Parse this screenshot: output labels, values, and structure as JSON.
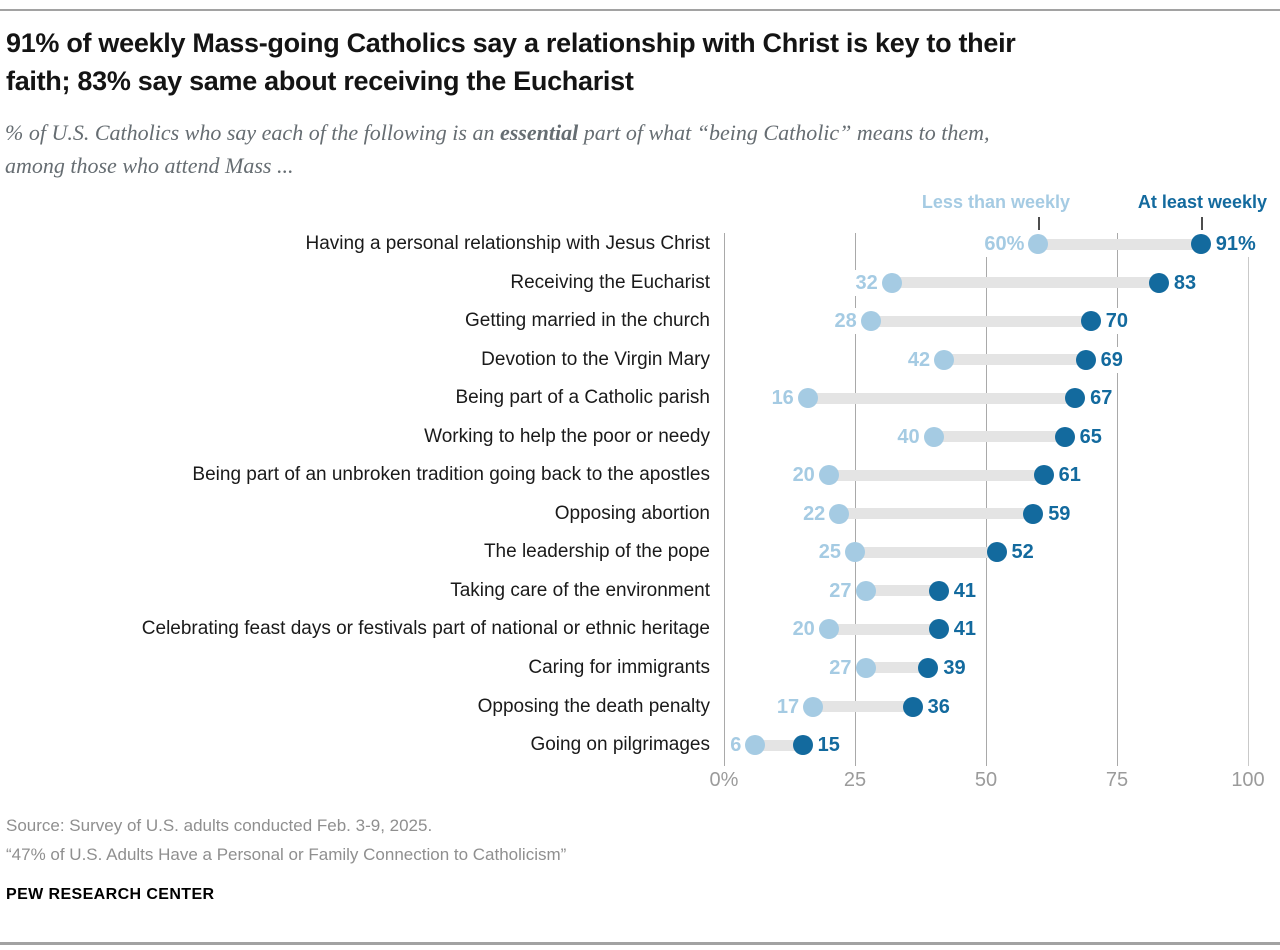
{
  "header": {
    "title_line1": "91% of weekly Mass-going Catholics say a relationship with Christ is key to their",
    "title_line2": "faith; 83% say same about receiving the Eucharist",
    "subtitle_pre": "% of U.S. Catholics who say each of the following is an ",
    "subtitle_bold": "essential",
    "subtitle_post": " part of what “being Catholic” means to them,",
    "subtitle_line2": "among those who attend Mass ..."
  },
  "legend": {
    "less": "Less than weekly",
    "most": "At least weekly"
  },
  "chart_data": {
    "type": "dumbbell",
    "title": "91% of weekly Mass-going Catholics say a relationship with Christ is key to their faith; 83% say same about receiving the Eucharist",
    "categories": [
      "Having a personal relationship with Jesus Christ",
      "Receiving the Eucharist",
      "Getting married in the church",
      "Devotion to the Virgin Mary",
      "Being part of a Catholic parish",
      "Working to help the poor or needy",
      "Being part of an unbroken tradition going back to the apostles",
      "Opposing abortion",
      "The leadership of the pope",
      "Taking care of the environment",
      "Celebrating feast days or festivals part of national or ethnic heritage",
      "Caring for immigrants",
      "Opposing the death penalty",
      "Going on pilgrimages"
    ],
    "series": [
      {
        "name": "Less than weekly",
        "values": [
          60,
          32,
          28,
          42,
          16,
          40,
          20,
          22,
          25,
          27,
          20,
          27,
          17,
          6
        ]
      },
      {
        "name": "At least weekly",
        "values": [
          91,
          83,
          70,
          69,
          67,
          65,
          61,
          59,
          52,
          41,
          41,
          39,
          36,
          15
        ]
      }
    ],
    "value_labels": {
      "less": [
        "60%",
        "32",
        "28",
        "42",
        "16",
        "40",
        "20",
        "22",
        "25",
        "27",
        "20",
        "27",
        "17",
        "6"
      ],
      "most": [
        "91%",
        "83",
        "70",
        "69",
        "67",
        "65",
        "61",
        "59",
        "52",
        "41",
        "41",
        "39",
        "36",
        "15"
      ]
    },
    "x_axis": {
      "range": [
        0,
        100
      ],
      "ticks": [
        0,
        25,
        50,
        75,
        100
      ],
      "tick_labels": [
        "0%",
        "25",
        "50",
        "75",
        "100"
      ],
      "grid": true
    },
    "legend_position": "top-right",
    "colors": {
      "less": "#a5cbe3",
      "most": "#136a9e",
      "connector": "#e4e4e4",
      "axis_text": "#9b9b9b"
    }
  },
  "footer": {
    "source": "Source: Survey of U.S. adults conducted Feb. 3-9, 2025.",
    "report": "“47% of U.S. Adults Have a Personal or Family Connection to Catholicism”",
    "brand": "PEW RESEARCH CENTER"
  }
}
